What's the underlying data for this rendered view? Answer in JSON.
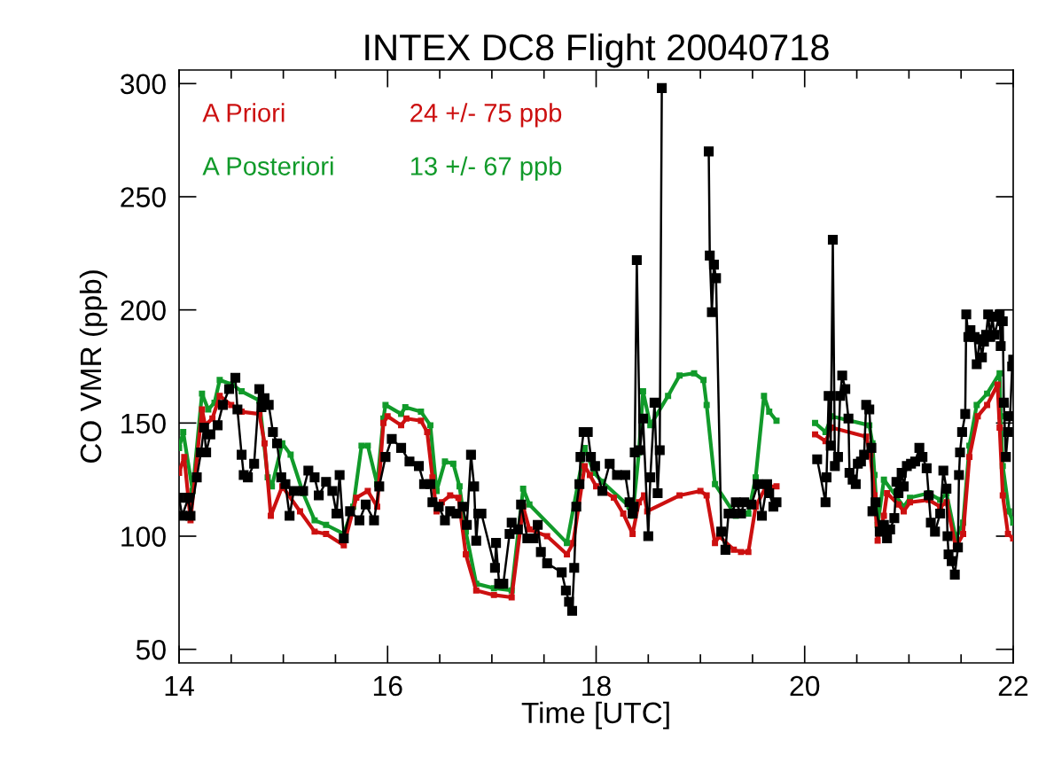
{
  "chart_data": {
    "type": "line",
    "title": "INTEX DC8 Flight 20040718",
    "xlabel": "Time [UTC]",
    "ylabel": "CO VMR (ppb)",
    "xlim": [
      14,
      22
    ],
    "xticks": [
      14,
      16,
      18,
      20,
      22
    ],
    "ylim": [
      44,
      306
    ],
    "yticks": [
      50,
      100,
      150,
      200,
      250,
      300
    ],
    "grid": false,
    "legend": "top left",
    "marker": "square",
    "line_style": "solid",
    "annotations": [
      "24 +/- 75 ppb",
      "13 +/- 67 ppb"
    ],
    "series": [
      {
        "color": "#000000",
        "x": [
          14.0,
          14.03,
          14.09,
          14.11,
          14.17,
          14.21,
          14.24,
          14.26,
          14.3,
          14.37,
          14.42,
          14.48,
          14.54,
          14.56,
          14.6,
          14.62,
          14.66,
          14.72,
          14.77,
          14.79,
          14.82,
          14.86,
          14.9,
          14.94,
          14.98,
          15.02,
          15.06,
          15.1,
          15.19,
          15.24,
          15.3,
          15.34,
          15.41,
          15.47,
          15.51,
          15.54,
          15.58,
          15.64,
          15.73,
          15.79,
          15.87,
          15.92,
          15.98,
          16.04,
          16.13,
          16.21,
          16.3,
          16.35,
          16.41,
          16.43,
          16.49,
          16.55,
          16.6,
          16.66,
          16.72,
          16.76,
          16.8,
          16.83,
          16.85,
          16.87,
          16.9,
          17.03,
          17.04,
          17.07,
          17.11,
          17.17,
          17.19,
          17.25,
          17.28,
          17.34,
          17.4,
          17.44,
          17.47,
          17.53,
          17.67,
          17.71,
          17.74,
          17.77,
          17.79,
          17.81,
          17.84,
          17.85,
          17.88,
          17.92,
          17.95,
          17.99,
          18.06,
          18.13,
          18.2,
          18.28,
          18.32,
          18.35,
          18.36,
          18.37,
          18.39,
          18.42,
          18.45,
          18.5,
          18.52,
          18.56,
          18.59,
          18.61,
          18.63,
          18.8,
          19.08,
          19.09,
          19.11,
          19.13,
          19.15,
          19.2,
          19.24,
          19.27,
          19.3,
          19.34,
          19.39,
          19.42,
          19.49,
          19.55,
          19.59,
          19.64,
          19.66,
          19.7,
          19.73,
          19.9,
          20.12,
          20.2,
          20.21,
          20.23,
          20.25,
          20.27,
          20.29,
          20.32,
          20.34,
          20.36,
          20.39,
          20.42,
          20.43,
          20.46,
          20.49,
          20.51,
          20.54,
          20.57,
          20.59,
          20.62,
          20.64,
          20.65,
          20.68,
          20.72,
          20.76,
          20.79,
          20.82,
          20.86,
          20.88,
          20.9,
          20.93,
          20.95,
          20.98,
          21.02,
          21.06,
          21.1,
          21.13,
          21.17,
          21.19,
          21.21,
          21.25,
          21.3,
          21.33,
          21.36,
          21.37,
          21.38,
          21.41,
          21.44,
          21.47,
          21.48,
          21.49,
          21.51,
          21.54,
          21.55,
          21.57,
          21.59,
          21.63,
          21.65,
          21.68,
          21.7,
          21.72,
          21.74,
          21.76,
          21.78,
          21.8,
          21.82,
          21.87,
          21.88,
          21.9,
          21.91,
          21.93,
          21.95,
          21.97,
          21.99,
          22.0
        ],
        "values": [
          117,
          109,
          117,
          109,
          126,
          137,
          148,
          137,
          145,
          149,
          158,
          165,
          170,
          156,
          136,
          127,
          126,
          132,
          165,
          157,
          161,
          158,
          146,
          141,
          126,
          123,
          109,
          120,
          120,
          129,
          126,
          118,
          124,
          120,
          110,
          127,
          99,
          111,
          107,
          114,
          107,
          122,
          135,
          143,
          139,
          133,
          131,
          123,
          123,
          115,
          113,
          107,
          111,
          110,
          113,
          105,
          136,
          122,
          98,
          110,
          110,
          86,
          97,
          79,
          79,
          101,
          106,
          103,
          114,
          99,
          99,
          105,
          93,
          88,
          84,
          76,
          71,
          67,
          86,
          113,
          123,
          135,
          146,
          146,
          135,
          131,
          120,
          132,
          127,
          127,
          115,
          110,
          113,
          137,
          222,
          138,
          152,
          100,
          126,
          159,
          119,
          138,
          298,
          null,
          270,
          224,
          199,
          220,
          214,
          102,
          94,
          110,
          110,
          115,
          110,
          115,
          114,
          123,
          109,
          123,
          119,
          113,
          115,
          null,
          134,
          115,
          126,
          162,
          140,
          231,
          131,
          135,
          162,
          171,
          165,
          152,
          128,
          125,
          123,
          132,
          133,
          136,
          158,
          156,
          139,
          111,
          115,
          102,
          105,
          99,
          103,
          108,
          124,
          119,
          128,
          122,
          131,
          132,
          133,
          139,
          135,
          130,
          118,
          106,
          102,
          110,
          129,
          121,
          100,
          92,
          89,
          83,
          95,
          127,
          137,
          146,
          154,
          198,
          188,
          191,
          188,
          176,
          187,
          179,
          186,
          189,
          198,
          188,
          197,
          189,
          198,
          184,
          195,
          159,
          135,
          146,
          153,
          175,
          178
        ]
      },
      {
        "name": "A Priori",
        "color": "#cc1010",
        "x": [
          14.0,
          14.05,
          14.11,
          14.22,
          14.25,
          14.32,
          14.39,
          14.5,
          14.6,
          14.77,
          14.82,
          14.88,
          14.99,
          15.16,
          15.3,
          15.41,
          15.58,
          15.7,
          15.81,
          15.9,
          15.96,
          16.0,
          16.13,
          16.18,
          16.32,
          16.38,
          16.43,
          16.47,
          16.52,
          16.6,
          16.68,
          16.75,
          16.85,
          17.02,
          17.19,
          17.3,
          17.36,
          17.53,
          17.72,
          17.78,
          17.89,
          17.94,
          18.0,
          18.17,
          18.26,
          18.35,
          18.41,
          18.46,
          18.49,
          18.8,
          19.0,
          19.06,
          19.14,
          19.18,
          19.32,
          19.39,
          19.46,
          19.53,
          19.63,
          19.73,
          19.9,
          20.1,
          20.2,
          20.26,
          20.59,
          20.63,
          20.67,
          20.7,
          20.76,
          20.79,
          20.9,
          20.95,
          21.01,
          21.19,
          21.3,
          21.36,
          21.45,
          21.52,
          21.58,
          21.66,
          21.75,
          21.85,
          21.87,
          21.9,
          21.95,
          22.0
        ],
        "values": [
          128,
          135,
          107,
          156,
          149,
          152,
          162,
          158,
          155,
          154,
          141,
          109,
          122,
          111,
          102,
          101,
          96,
          117,
          120,
          113,
          150,
          153,
          149,
          152,
          151,
          146,
          126,
          111,
          115,
          118,
          117,
          92,
          76,
          74,
          73,
          113,
          103,
          100,
          92,
          97,
          131,
          127,
          122,
          117,
          110,
          101,
          115,
          118,
          111,
          118,
          120,
          118,
          97,
          100,
          94,
          93,
          93,
          113,
          122,
          122,
          null,
          145,
          142,
          148,
          144,
          136,
          118,
          98,
          109,
          119,
          114,
          111,
          115,
          116,
          113,
          115,
          95,
          101,
          135,
          153,
          158,
          167,
          148,
          118,
          101,
          99
        ]
      },
      {
        "name": "A Posteriori",
        "color": "#119a2a",
        "x": [
          14.0,
          14.04,
          14.13,
          14.22,
          14.28,
          14.34,
          14.39,
          14.51,
          14.6,
          14.77,
          14.85,
          14.89,
          14.99,
          15.07,
          15.19,
          15.3,
          15.41,
          15.58,
          15.67,
          15.75,
          15.81,
          15.9,
          15.96,
          15.98,
          16.13,
          16.17,
          16.32,
          16.41,
          16.47,
          16.55,
          16.63,
          16.69,
          16.75,
          16.85,
          17.02,
          17.19,
          17.3,
          17.36,
          17.72,
          17.89,
          17.98,
          18.06,
          18.32,
          18.35,
          18.41,
          18.45,
          18.52,
          18.69,
          18.8,
          18.94,
          19.03,
          19.06,
          19.14,
          19.34,
          19.39,
          19.46,
          19.53,
          19.61,
          19.66,
          19.73,
          19.9,
          20.1,
          20.2,
          20.26,
          20.62,
          20.65,
          20.67,
          20.7,
          20.76,
          20.95,
          21.01,
          21.19,
          21.3,
          21.36,
          21.45,
          21.52,
          21.58,
          21.65,
          21.75,
          21.87,
          21.88,
          21.9,
          21.96,
          22.0
        ],
        "values": [
          139,
          146,
          120,
          163,
          156,
          159,
          169,
          167,
          164,
          160,
          126,
          122,
          141,
          136,
          119,
          107,
          105,
          101,
          113,
          140,
          140,
          123,
          152,
          158,
          154,
          157,
          155,
          149,
          120,
          133,
          132,
          122,
          102,
          79,
          77,
          76,
          121,
          114,
          97,
          139,
          128,
          124,
          113,
          109,
          137,
          164,
          149,
          162,
          171,
          172,
          169,
          158,
          123,
          109,
          110,
          110,
          126,
          162,
          155,
          151,
          null,
          150,
          146,
          153,
          149,
          141,
          127,
          105,
          125,
          113,
          117,
          119,
          116,
          119,
          99,
          106,
          140,
          158,
          163,
          172,
          153,
          131,
          111,
          106
        ]
      }
    ]
  }
}
